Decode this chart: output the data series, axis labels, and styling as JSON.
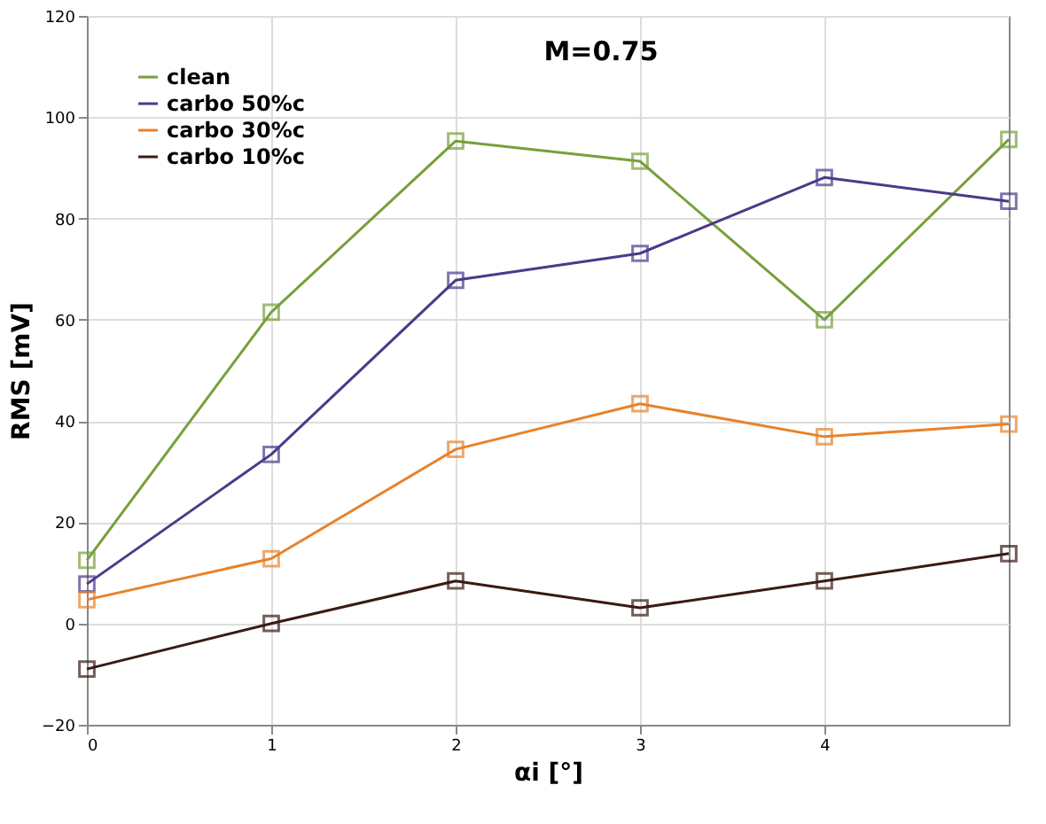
{
  "chart_data": {
    "type": "line",
    "xlabel": "αi [°]",
    "ylabel": "RMS [mV]",
    "annotations": [
      "M=0.75"
    ],
    "x": [
      0,
      1,
      2,
      3,
      4,
      5
    ],
    "xlim": [
      0,
      5
    ],
    "xticks": [
      0,
      1,
      2,
      3,
      4
    ],
    "ylim": [
      -20,
      120
    ],
    "yticks": [
      -20,
      0,
      20,
      40,
      60,
      80,
      100,
      120
    ],
    "grid": true,
    "legend": "top left",
    "marker": "square",
    "line_style": "solid",
    "series": [
      {
        "name": "clean",
        "color": "#77a03c",
        "values": [
          12.5,
          61.5,
          95.3,
          91.3,
          60,
          95.6
        ]
      },
      {
        "name": "carbo 50%c",
        "color": "#4b3a8a",
        "values": [
          7.8,
          33.4,
          67.8,
          73.1,
          88.1,
          83.4
        ]
      },
      {
        "name": "carbo 30%c",
        "color": "#e8822a",
        "values": [
          4.7,
          12.8,
          34.4,
          43.4,
          36.9,
          39.4
        ]
      },
      {
        "name": "carbo 10%c",
        "color": "#3a1a14",
        "values": [
          -9,
          0,
          8.4,
          3.1,
          8.4,
          13.8
        ]
      }
    ]
  }
}
